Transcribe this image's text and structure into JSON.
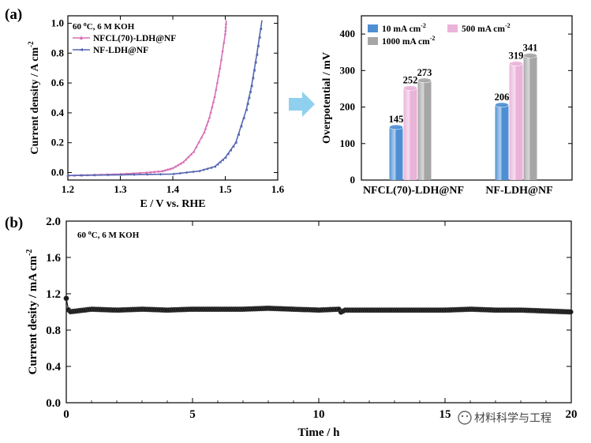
{
  "panel_a_label": "(a)",
  "panel_b_label": "(b)",
  "watermark": "材料科学与工程",
  "arrow_color": "#8fd0ef",
  "chart_data": [
    {
      "id": "lsv",
      "type": "line",
      "xlabel": "E / V vs. RHE",
      "ylabel": "Current density / A cm",
      "ylabel_sup": "-2",
      "condition": "60 °C, 6 M KOH",
      "xlim": [
        1.2,
        1.6
      ],
      "ylim": [
        -0.05,
        1.05
      ],
      "xticks": [
        "1.2",
        "1.3",
        "1.4",
        "1.5",
        "1.6"
      ],
      "yticks": [
        "0.0",
        "0.2",
        "0.4",
        "0.6",
        "0.8",
        "1.0"
      ],
      "legend_position": "top-left",
      "series": [
        {
          "name": "NFCL(70)-LDH@NF",
          "color": "#d470b5",
          "x": [
            1.2,
            1.25,
            1.3,
            1.35,
            1.38,
            1.4,
            1.42,
            1.44,
            1.46,
            1.47,
            1.48,
            1.49,
            1.5,
            1.502
          ],
          "y": [
            -0.02,
            -0.015,
            -0.01,
            0.0,
            0.01,
            0.03,
            0.07,
            0.14,
            0.27,
            0.37,
            0.51,
            0.7,
            0.93,
            1.02
          ]
        },
        {
          "name": "NF-LDH@NF",
          "color": "#5566b0",
          "x": [
            1.2,
            1.3,
            1.4,
            1.45,
            1.48,
            1.5,
            1.52,
            1.54,
            1.55,
            1.56,
            1.57
          ],
          "y": [
            -0.02,
            -0.015,
            -0.01,
            0.01,
            0.04,
            0.1,
            0.2,
            0.42,
            0.58,
            0.79,
            1.02
          ]
        }
      ]
    },
    {
      "id": "overpotential",
      "type": "bar",
      "ylabel": "Overpotential / mV",
      "ylim": [
        0,
        450
      ],
      "yticks": [
        "0",
        "100",
        "200",
        "300",
        "400"
      ],
      "categories": [
        "NFCL(70)-LDH@NF",
        "NF-LDH@NF"
      ],
      "legend_position": "top",
      "series": [
        {
          "name": "10 mA cm",
          "sup": "-2",
          "color": "#4e8fd4",
          "values": [
            145,
            206
          ]
        },
        {
          "name": "500 mA cm",
          "sup": "-2",
          "color": "#eab3d9",
          "values": [
            252,
            319
          ]
        },
        {
          "name": "1000 mA cm",
          "sup": "-2",
          "color": "#a6a6a6",
          "values": [
            273,
            341
          ]
        }
      ]
    },
    {
      "id": "stability",
      "type": "scatter",
      "xlabel": "Time / h",
      "ylabel": "Current desity / mA cm",
      "ylabel_sup": "-2",
      "condition": "60 °C, 6 M KOH",
      "xlim": [
        0,
        20
      ],
      "ylim": [
        0.0,
        2.0
      ],
      "xticks": [
        "0",
        "5",
        "10",
        "15",
        "20"
      ],
      "yticks": [
        "0.0",
        "0.4",
        "0.8",
        "1.2",
        "1.6",
        "2.0"
      ],
      "series": [
        {
          "name": "",
          "color": "#111111",
          "x": [
            0,
            0.1,
            1,
            2,
            3,
            4,
            5,
            6,
            7,
            8,
            9,
            10,
            10.8,
            10.9,
            11,
            12,
            13,
            14,
            15,
            16,
            17,
            18,
            19,
            20
          ],
          "y": [
            1.15,
            1.0,
            1.03,
            1.02,
            1.03,
            1.02,
            1.03,
            1.03,
            1.03,
            1.04,
            1.03,
            1.02,
            1.03,
            0.99,
            1.02,
            1.02,
            1.02,
            1.02,
            1.02,
            1.03,
            1.02,
            1.02,
            1.01,
            1.0
          ]
        }
      ]
    }
  ]
}
